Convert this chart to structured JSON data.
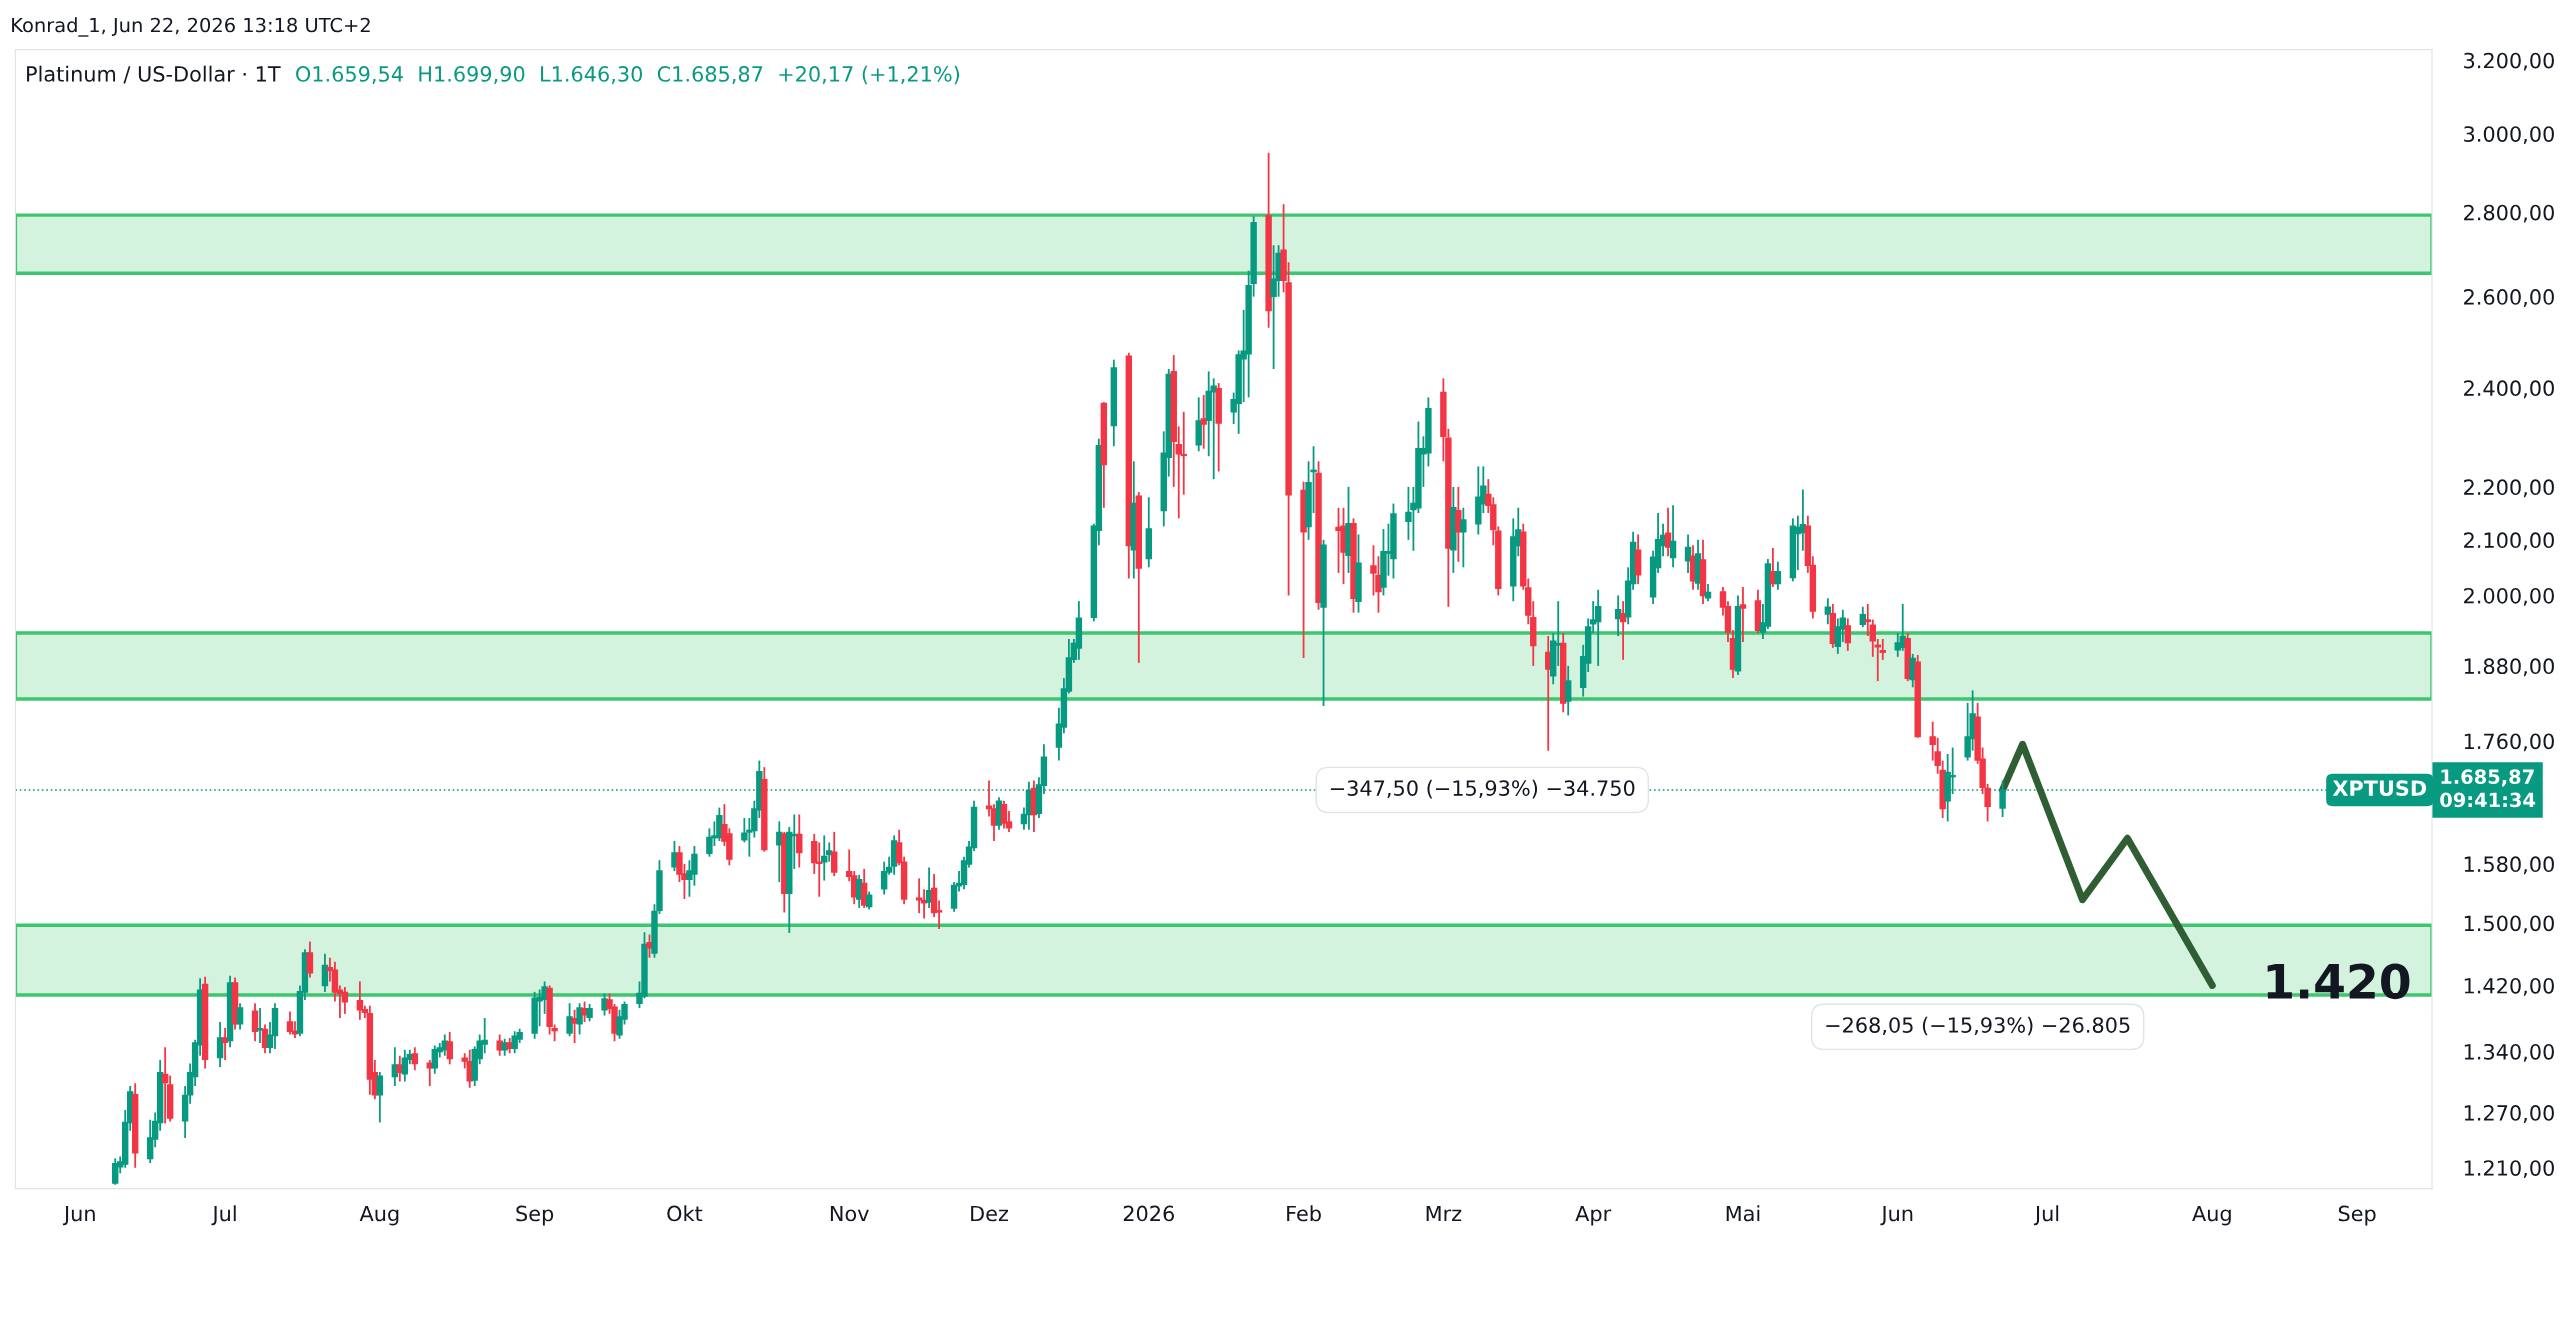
{
  "chart_data": {
    "type": "candlestick",
    "title": "Platinum / US-Dollar · 1T",
    "subtitle": "O1.659,54  H1.699,90  L1.646,30  C1.685,87  +20,17 (+1,21%)",
    "x": [
      "2025-06-09",
      "2025-06-10",
      "2025-06-11",
      "2025-06-12",
      "2025-06-13",
      "2025-06-16",
      "2025-06-17",
      "2025-06-18",
      "2025-06-19",
      "2025-06-20",
      "2025-06-23",
      "2025-06-24",
      "2025-06-25",
      "2025-06-26",
      "2025-06-27",
      "2025-06-30",
      "2025-07-01",
      "2025-07-02",
      "2025-07-03",
      "2025-07-04",
      "2025-07-07",
      "2025-07-08",
      "2025-07-09",
      "2025-07-10",
      "2025-07-11",
      "2025-07-14",
      "2025-07-15",
      "2025-07-16",
      "2025-07-17",
      "2025-07-18",
      "2025-07-21",
      "2025-07-22",
      "2025-07-23",
      "2025-07-24",
      "2025-07-25",
      "2025-07-28",
      "2025-07-29",
      "2025-07-30",
      "2025-07-31",
      "2025-08-01",
      "2025-08-04",
      "2025-08-05",
      "2025-08-06",
      "2025-08-07",
      "2025-08-08",
      "2025-08-11",
      "2025-08-12",
      "2025-08-13",
      "2025-08-14",
      "2025-08-15",
      "2025-08-18",
      "2025-08-19",
      "2025-08-20",
      "2025-08-21",
      "2025-08-22",
      "2025-08-25",
      "2025-08-26",
      "2025-08-27",
      "2025-08-28",
      "2025-08-29",
      "2025-09-01",
      "2025-09-02",
      "2025-09-03",
      "2025-09-04",
      "2025-09-05",
      "2025-09-08",
      "2025-09-09",
      "2025-09-10",
      "2025-09-11",
      "2025-09-12",
      "2025-09-15",
      "2025-09-16",
      "2025-09-17",
      "2025-09-18",
      "2025-09-19",
      "2025-09-22",
      "2025-09-23",
      "2025-09-24",
      "2025-09-25",
      "2025-09-26",
      "2025-09-29",
      "2025-09-30",
      "2025-10-01",
      "2025-10-02",
      "2025-10-03",
      "2025-10-06",
      "2025-10-07",
      "2025-10-08",
      "2025-10-09",
      "2025-10-10",
      "2025-10-13",
      "2025-10-14",
      "2025-10-15",
      "2025-10-16",
      "2025-10-17",
      "2025-10-20",
      "2025-10-21",
      "2025-10-22",
      "2025-10-23",
      "2025-10-24",
      "2025-10-27",
      "2025-10-28",
      "2025-10-29",
      "2025-10-30",
      "2025-10-31",
      "2025-11-03",
      "2025-11-04",
      "2025-11-05",
      "2025-11-06",
      "2025-11-07",
      "2025-11-10",
      "2025-11-11",
      "2025-11-12",
      "2025-11-13",
      "2025-11-14",
      "2025-11-17",
      "2025-11-18",
      "2025-11-19",
      "2025-11-20",
      "2025-11-21",
      "2025-11-24",
      "2025-11-25",
      "2025-11-26",
      "2025-11-27",
      "2025-11-28",
      "2025-12-01",
      "2025-12-02",
      "2025-12-03",
      "2025-12-04",
      "2025-12-05",
      "2025-12-08",
      "2025-12-09",
      "2025-12-10",
      "2025-12-11",
      "2025-12-12",
      "2025-12-15",
      "2025-12-16",
      "2025-12-17",
      "2025-12-18",
      "2025-12-19",
      "2025-12-22",
      "2025-12-23",
      "2025-12-24",
      "2025-12-26",
      "2025-12-29",
      "2025-12-30",
      "2025-12-31",
      "2026-01-02",
      "2026-01-05",
      "2026-01-06",
      "2026-01-07",
      "2026-01-08",
      "2026-01-09",
      "2026-01-12",
      "2026-01-13",
      "2026-01-14",
      "2026-01-15",
      "2026-01-16",
      "2026-01-19",
      "2026-01-20",
      "2026-01-21",
      "2026-01-22",
      "2026-01-23",
      "2026-01-26",
      "2026-01-27",
      "2026-01-28",
      "2026-01-29",
      "2026-01-30",
      "2026-02-02",
      "2026-02-03",
      "2026-02-04",
      "2026-02-05",
      "2026-02-06",
      "2026-02-09",
      "2026-02-10",
      "2026-02-11",
      "2026-02-12",
      "2026-02-13",
      "2026-02-16",
      "2026-02-17",
      "2026-02-18",
      "2026-02-19",
      "2026-02-20",
      "2026-02-23",
      "2026-02-24",
      "2026-02-25",
      "2026-02-26",
      "2026-02-27",
      "2026-03-02",
      "2026-03-03",
      "2026-03-04",
      "2026-03-05",
      "2026-03-06",
      "2026-03-09",
      "2026-03-10",
      "2026-03-11",
      "2026-03-12",
      "2026-03-13",
      "2026-03-16",
      "2026-03-17",
      "2026-03-18",
      "2026-03-19",
      "2026-03-20",
      "2026-03-23",
      "2026-03-24",
      "2026-03-25",
      "2026-03-26",
      "2026-03-27",
      "2026-03-30",
      "2026-03-31",
      "2026-04-01",
      "2026-04-02",
      "2026-04-06",
      "2026-04-07",
      "2026-04-08",
      "2026-04-09",
      "2026-04-10",
      "2026-04-13",
      "2026-04-14",
      "2026-04-15",
      "2026-04-16",
      "2026-04-17",
      "2026-04-20",
      "2026-04-21",
      "2026-04-22",
      "2026-04-23",
      "2026-04-24",
      "2026-04-27",
      "2026-04-28",
      "2026-04-29",
      "2026-04-30",
      "2026-05-01",
      "2026-05-04",
      "2026-05-05",
      "2026-05-06",
      "2026-05-07",
      "2026-05-08",
      "2026-05-11",
      "2026-05-12",
      "2026-05-13",
      "2026-05-14",
      "2026-05-15",
      "2026-05-18",
      "2026-05-19",
      "2026-05-20",
      "2026-05-21",
      "2026-05-22",
      "2026-05-25",
      "2026-05-26",
      "2026-05-27",
      "2026-05-28",
      "2026-05-29",
      "2026-06-01",
      "2026-06-02",
      "2026-06-03",
      "2026-06-04",
      "2026-06-05",
      "2026-06-08",
      "2026-06-09",
      "2026-06-10",
      "2026-06-11",
      "2026-06-12",
      "2026-06-15",
      "2026-06-16",
      "2026-06-17",
      "2026-06-18",
      "2026-06-19",
      "2026-06-22"
    ],
    "ohlc": [
      [
        1194,
        1220,
        1192,
        1214
      ],
      [
        1211,
        1222,
        1204,
        1216
      ],
      [
        1214,
        1273,
        1210,
        1259
      ],
      [
        1259,
        1300,
        1250,
        1293
      ],
      [
        1290,
        1303,
        1210,
        1226
      ],
      [
        1220,
        1262,
        1215,
        1242
      ],
      [
        1241,
        1270,
        1232,
        1260
      ],
      [
        1259,
        1330,
        1250,
        1315
      ],
      [
        1313,
        1345,
        1258,
        1304
      ],
      [
        1301,
        1312,
        1260,
        1264
      ],
      [
        1261,
        1300,
        1242,
        1289
      ],
      [
        1290,
        1326,
        1280,
        1315
      ],
      [
        1311,
        1354,
        1300,
        1350
      ],
      [
        1348,
        1429,
        1335,
        1414
      ],
      [
        1421,
        1431,
        1320,
        1331
      ],
      [
        1333,
        1375,
        1322,
        1356
      ],
      [
        1356,
        1368,
        1330,
        1351
      ],
      [
        1353,
        1432,
        1345,
        1423
      ],
      [
        1423,
        1430,
        1366,
        1373
      ],
      [
        1373,
        1398,
        1366,
        1392
      ],
      [
        1388,
        1398,
        1352,
        1364
      ],
      [
        1366,
        1392,
        1350,
        1367
      ],
      [
        1366,
        1372,
        1338,
        1345
      ],
      [
        1345,
        1375,
        1338,
        1359
      ],
      [
        1359,
        1398,
        1343,
        1391
      ],
      [
        1375,
        1388,
        1360,
        1364
      ],
      [
        1364,
        1376,
        1356,
        1361
      ],
      [
        1362,
        1420,
        1358,
        1412
      ],
      [
        1412,
        1466,
        1402,
        1461
      ],
      [
        1461,
        1476,
        1430,
        1436
      ],
      [
        1420,
        1460,
        1412,
        1445
      ],
      [
        1442,
        1455,
        1425,
        1439
      ],
      [
        1439,
        1450,
        1400,
        1412
      ],
      [
        1414,
        1420,
        1380,
        1410
      ],
      [
        1411,
        1418,
        1385,
        1400
      ],
      [
        1401,
        1425,
        1378,
        1390
      ],
      [
        1390,
        1395,
        1380,
        1387
      ],
      [
        1385,
        1395,
        1290,
        1308
      ],
      [
        1315,
        1330,
        1285,
        1290
      ],
      [
        1290,
        1316,
        1259,
        1311
      ],
      [
        1311,
        1345,
        1300,
        1324
      ],
      [
        1324,
        1335,
        1305,
        1316
      ],
      [
        1314,
        1342,
        1305,
        1332
      ],
      [
        1331,
        1342,
        1325,
        1336
      ],
      [
        1337,
        1345,
        1318,
        1326
      ],
      [
        1326,
        1330,
        1300,
        1321
      ],
      [
        1321,
        1347,
        1314,
        1342
      ],
      [
        1340,
        1350,
        1333,
        1344
      ],
      [
        1342,
        1360,
        1335,
        1352
      ],
      [
        1351,
        1363,
        1325,
        1332
      ],
      [
        1332,
        1338,
        1320,
        1329
      ],
      [
        1328,
        1342,
        1298,
        1306
      ],
      [
        1307,
        1346,
        1300,
        1342
      ],
      [
        1332,
        1360,
        1325,
        1352
      ],
      [
        1349,
        1380,
        1338,
        1353
      ],
      [
        1352,
        1360,
        1335,
        1342
      ],
      [
        1342,
        1355,
        1335,
        1350
      ],
      [
        1350,
        1356,
        1338,
        1344
      ],
      [
        1344,
        1364,
        1338,
        1358
      ],
      [
        1355,
        1367,
        1350,
        1362
      ],
      [
        1362,
        1412,
        1355,
        1404
      ],
      [
        1401,
        1415,
        1370,
        1405
      ],
      [
        1403,
        1425,
        1385,
        1418
      ],
      [
        1416,
        1420,
        1360,
        1370
      ],
      [
        1367,
        1372,
        1352,
        1365
      ],
      [
        1362,
        1398,
        1358,
        1381
      ],
      [
        1379,
        1390,
        1350,
        1374
      ],
      [
        1373,
        1398,
        1360,
        1392
      ],
      [
        1391,
        1400,
        1375,
        1384
      ],
      [
        1381,
        1397,
        1376,
        1391
      ],
      [
        1390,
        1410,
        1383,
        1403
      ],
      [
        1402,
        1410,
        1385,
        1392
      ],
      [
        1393,
        1397,
        1352,
        1362
      ],
      [
        1360,
        1390,
        1355,
        1381
      ],
      [
        1379,
        1400,
        1372,
        1396
      ],
      [
        1398,
        1425,
        1392,
        1410
      ],
      [
        1407,
        1488,
        1404,
        1472
      ],
      [
        1474,
        1485,
        1455,
        1468
      ],
      [
        1461,
        1525,
        1455,
        1515
      ],
      [
        1517,
        1585,
        1512,
        1570
      ],
      [
        1576,
        1612,
        1570,
        1595
      ],
      [
        1595,
        1605,
        1555,
        1566
      ],
      [
        1566,
        1580,
        1532,
        1559
      ],
      [
        1559,
        1585,
        1535,
        1570
      ],
      [
        1566,
        1605,
        1550,
        1593
      ],
      [
        1595,
        1630,
        1590,
        1617
      ],
      [
        1617,
        1640,
        1605,
        1619
      ],
      [
        1617,
        1660,
        1612,
        1648
      ],
      [
        1635,
        1665,
        1605,
        1612
      ],
      [
        1622,
        1630,
        1578,
        1587
      ],
      [
        1614,
        1645,
        1610,
        1623
      ],
      [
        1625,
        1645,
        1590,
        1627
      ],
      [
        1627,
        1670,
        1617,
        1658
      ],
      [
        1657,
        1730,
        1645,
        1713
      ],
      [
        1701,
        1720,
        1597,
        1600
      ],
      [
        1607,
        1640,
        1555,
        1624
      ],
      [
        1622,
        1625,
        1514,
        1540
      ],
      [
        1540,
        1632,
        1487,
        1624
      ],
      [
        1620,
        1650,
        1573,
        1621
      ],
      [
        1621,
        1650,
        1575,
        1596
      ],
      [
        1611,
        1622,
        1566,
        1582
      ],
      [
        1582,
        1610,
        1535,
        1581
      ],
      [
        1583,
        1620,
        1557,
        1590
      ],
      [
        1593,
        1610,
        1583,
        1598
      ],
      [
        1596,
        1625,
        1563,
        1569
      ],
      [
        1569,
        1600,
        1556,
        1563
      ],
      [
        1563,
        1570,
        1525,
        1535
      ],
      [
        1532,
        1565,
        1520,
        1558
      ],
      [
        1553,
        1573,
        1520,
        1524
      ],
      [
        1522,
        1542,
        1518,
        1537
      ],
      [
        1546,
        1583,
        1538,
        1569
      ],
      [
        1569,
        1590,
        1565,
        1575
      ],
      [
        1577,
        1620,
        1565,
        1612
      ],
      [
        1609,
        1628,
        1578,
        1582
      ],
      [
        1582,
        1590,
        1525,
        1532
      ],
      [
        1533,
        1560,
        1513,
        1531
      ],
      [
        1530,
        1545,
        1506,
        1527
      ],
      [
        1528,
        1575,
        1520,
        1543
      ],
      [
        1546,
        1566,
        1508,
        1514
      ],
      [
        1516,
        1530,
        1492,
        1515
      ],
      [
        1520,
        1555,
        1515,
        1550
      ],
      [
        1550,
        1570,
        1542,
        1553
      ],
      [
        1552,
        1590,
        1545,
        1584
      ],
      [
        1580,
        1612,
        1575,
        1603
      ],
      [
        1603,
        1670,
        1598,
        1660
      ],
      [
        1662,
        1700,
        1647,
        1659
      ],
      [
        1658,
        1665,
        1612,
        1635
      ],
      [
        1635,
        1675,
        1628,
        1669
      ],
      [
        1664,
        1670,
        1630,
        1638
      ],
      [
        1639,
        1655,
        1625,
        1631
      ],
      [
        1637,
        1660,
        1628,
        1650
      ],
      [
        1650,
        1698,
        1628,
        1685
      ],
      [
        1688,
        1700,
        1625,
        1650
      ],
      [
        1652,
        1705,
        1645,
        1693
      ],
      [
        1693,
        1755,
        1680,
        1735
      ],
      [
        1751,
        1812,
        1730,
        1786
      ],
      [
        1782,
        1860,
        1772,
        1842
      ],
      [
        1839,
        1925,
        1835,
        1893
      ],
      [
        1891,
        1925,
        1885,
        1917
      ],
      [
        1910,
        1990,
        1890,
        1960
      ],
      [
        1962,
        2130,
        1955,
        2125
      ],
      [
        2118,
        2295,
        2090,
        2281
      ],
      [
        2367,
        2370,
        2160,
        2244
      ],
      [
        2322,
        2460,
        2280,
        2442
      ],
      [
        2467,
        2475,
        2030,
        2090
      ],
      [
        2082,
        2250,
        2030,
        2168
      ],
      [
        2182,
        2190,
        1885,
        2049
      ],
      [
        2066,
        2180,
        2050,
        2120
      ],
      [
        2155,
        2310,
        2125,
        2266
      ],
      [
        2258,
        2440,
        2220,
        2428
      ],
      [
        2434,
        2470,
        2200,
        2290
      ],
      [
        2283,
        2320,
        2140,
        2265
      ],
      [
        2263,
        2350,
        2185,
        2262
      ],
      [
        2283,
        2380,
        2270,
        2331
      ],
      [
        2335,
        2385,
        2275,
        2325
      ],
      [
        2333,
        2435,
        2260,
        2392
      ],
      [
        2392,
        2420,
        2215,
        2403
      ],
      [
        2398,
        2410,
        2230,
        2327
      ],
      [
        2350,
        2390,
        2325,
        2375
      ],
      [
        2368,
        2480,
        2305,
        2470
      ],
      [
        2462,
        2570,
        2370,
        2478
      ],
      [
        2473,
        2660,
        2380,
        2625
      ],
      [
        2631,
        2790,
        2600,
        2774
      ],
      [
        2791,
        2950,
        2530,
        2569
      ],
      [
        2601,
        2720,
        2440,
        2640
      ],
      [
        2638,
        2720,
        2600,
        2700
      ],
      [
        2708,
        2820,
        2610,
        2638
      ],
      [
        2631,
        2680,
        2000,
        2185
      ],
      [
        2193,
        2210,
        1893,
        2115
      ],
      [
        2125,
        2250,
        2100,
        2208
      ],
      [
        2230,
        2280,
        2150,
        2232
      ],
      [
        2226,
        2250,
        1975,
        1988
      ],
      [
        1980,
        2100,
        1815,
        2090
      ],
      [
        2123,
        2160,
        2040,
        2118
      ],
      [
        2125,
        2160,
        2020,
        2078
      ],
      [
        2072,
        2200,
        2040,
        2130
      ],
      [
        2130,
        2140,
        1970,
        1995
      ],
      [
        1990,
        2110,
        1970,
        2057
      ],
      [
        2052,
        2090,
        2000,
        2040
      ],
      [
        2035,
        2070,
        1970,
        2007
      ],
      [
        2015,
        2120,
        2000,
        2078
      ],
      [
        2076,
        2130,
        2035,
        2078
      ],
      [
        2066,
        2168,
        2030,
        2148
      ],
      [
        2135,
        2200,
        2100,
        2151
      ],
      [
        2157,
        2200,
        2080,
        2168
      ],
      [
        2160,
        2330,
        2150,
        2275
      ],
      [
        2265,
        2300,
        2200,
        2275
      ],
      [
        2267,
        2380,
        2240,
        2356
      ],
      [
        2390,
        2420,
        2250,
        2300
      ],
      [
        2296,
        2315,
        1980,
        2085
      ],
      [
        2082,
        2200,
        2040,
        2160
      ],
      [
        2154,
        2200,
        2060,
        2115
      ],
      [
        2115,
        2160,
        2050,
        2137
      ],
      [
        2130,
        2240,
        2110,
        2180
      ],
      [
        2168,
        2240,
        2150,
        2201
      ],
      [
        2185,
        2215,
        2150,
        2165
      ],
      [
        2165,
        2180,
        2090,
        2120
      ],
      [
        2116,
        2125,
        2000,
        2013
      ],
      [
        2017,
        2140,
        1990,
        2105
      ],
      [
        2090,
        2160,
        2070,
        2118
      ],
      [
        2114,
        2130,
        2010,
        2017
      ],
      [
        2013,
        2030,
        1950,
        1966
      ],
      [
        1961,
        1990,
        1880,
        1914
      ],
      [
        1902,
        1930,
        1745,
        1875
      ],
      [
        1864,
        1935,
        1850,
        1921
      ],
      [
        1915,
        1990,
        1880,
        1917
      ],
      [
        1917,
        1935,
        1805,
        1820
      ],
      [
        1823,
        1880,
        1800,
        1855
      ],
      [
        1845,
        1915,
        1830,
        1895
      ],
      [
        1885,
        1960,
        1870,
        1945
      ],
      [
        1951,
        1990,
        1935,
        1957
      ],
      [
        1955,
        2010,
        1880,
        1980
      ],
      [
        1960,
        2000,
        1930,
        1975
      ],
      [
        1968,
        1990,
        1890,
        1955
      ],
      [
        1963,
        2050,
        1950,
        2025
      ],
      [
        2021,
        2115,
        2010,
        2095
      ],
      [
        2081,
        2110,
        2020,
        2037
      ],
      [
        1998,
        2080,
        1985,
        2068
      ],
      [
        2050,
        2150,
        2040,
        2100
      ],
      [
        2090,
        2130,
        2070,
        2108
      ],
      [
        2112,
        2160,
        2070,
        2087
      ],
      [
        2068,
        2165,
        2050,
        2097
      ],
      [
        2062,
        2110,
        2040,
        2086
      ],
      [
        2070,
        2090,
        2010,
        2026
      ],
      [
        2022,
        2100,
        2010,
        2074
      ],
      [
        2063,
        2100,
        1985,
        2000
      ],
      [
        1996,
        2020,
        1990,
        2005
      ],
      [
        2006,
        2015,
        1965,
        1980
      ],
      [
        1980,
        1990,
        1920,
        1937
      ],
      [
        1925,
        1940,
        1860,
        1875
      ],
      [
        1872,
        2000,
        1865,
        1980
      ],
      [
        1983,
        2015,
        1920,
        1978
      ],
      [
        1990,
        2010,
        1935,
        1940
      ],
      [
        1937,
        1985,
        1925,
        1952
      ],
      [
        1947,
        2065,
        1942,
        2056
      ],
      [
        2042,
        2085,
        2015,
        2021
      ],
      [
        2021,
        2060,
        2010,
        2042
      ],
      [
        2032,
        2140,
        2025,
        2125
      ],
      [
        2112,
        2145,
        2045,
        2123
      ],
      [
        2114,
        2195,
        2080,
        2128
      ],
      [
        2125,
        2145,
        2040,
        2054
      ],
      [
        2053,
        2070,
        1960,
        1973
      ],
      [
        1968,
        1995,
        1950,
        1979
      ],
      [
        1968,
        1985,
        1910,
        1918
      ],
      [
        1913,
        1960,
        1900,
        1945
      ],
      [
        1942,
        1975,
        1920,
        1960
      ],
      [
        1947,
        1960,
        1905,
        1919
      ],
      [
        1950,
        1980,
        1945,
        1966
      ],
      [
        1957,
        1985,
        1930,
        1955
      ],
      [
        1948,
        1958,
        1895,
        1922
      ],
      [
        1914,
        1925,
        1855,
        1912
      ],
      [
        1905,
        1925,
        1890,
        1903
      ],
      [
        1907,
        1935,
        1895,
        1918
      ],
      [
        1911,
        1985,
        1905,
        1929
      ],
      [
        1925,
        1935,
        1855,
        1860
      ],
      [
        1858,
        1900,
        1845,
        1892
      ],
      [
        1886,
        1898,
        1765,
        1767
      ],
      [
        1766,
        1790,
        1730,
        1755
      ],
      [
        1743,
        1765,
        1710,
        1723
      ],
      [
        1715,
        1730,
        1645,
        1659
      ],
      [
        1670,
        1740,
        1640,
        1712
      ],
      [
        1706,
        1750,
        1680,
        1707
      ],
      [
        1736,
        1820,
        1730,
        1766
      ],
      [
        1764,
        1840,
        1745,
        1802
      ],
      [
        1797,
        1820,
        1725,
        1731
      ],
      [
        1732,
        1750,
        1680,
        1690
      ],
      [
        1688,
        1695,
        1640,
        1662
      ],
      [
        1659.54,
        1699.9,
        1646.3,
        1685.87
      ]
    ],
    "series": [
      {
        "type": "line",
        "color": "#2f5e35",
        "x": [
          "2026-06-22",
          "2026-06-26",
          "2026-07-08",
          "2026-07-17",
          "2026-08-03"
        ],
        "values": [
          1685.87,
          1755,
          1531,
          1616,
          1420
        ]
      }
    ],
    "log": true,
    "xlim": [
      "2025-05-20",
      "2026-09-16"
    ],
    "xticks": [
      {
        "value": "2025-06-02",
        "label": "Jun"
      },
      {
        "value": "2025-07-01",
        "label": "Jul"
      },
      {
        "value": "2025-08-01",
        "label": "Aug"
      },
      {
        "value": "2025-09-01",
        "label": "Sep"
      },
      {
        "value": "2025-10-01",
        "label": "Okt"
      },
      {
        "value": "2025-11-03",
        "label": "Nov"
      },
      {
        "value": "2025-12-01",
        "label": "Dez"
      },
      {
        "value": "2026-01-02",
        "label": "2026"
      },
      {
        "value": "2026-02-02",
        "label": "Feb"
      },
      {
        "value": "2026-03-02",
        "label": "Mrz"
      },
      {
        "value": "2026-04-01",
        "label": "Apr"
      },
      {
        "value": "2026-05-01",
        "label": "Mai"
      },
      {
        "value": "2026-06-01",
        "label": "Jun"
      },
      {
        "value": "2026-07-01",
        "label": "Jul"
      },
      {
        "value": "2026-08-03",
        "label": "Aug"
      },
      {
        "value": "2026-09-01",
        "label": "Sep"
      }
    ],
    "ylim": [
      1188,
      3230
    ],
    "yticks": [
      {
        "value": 1210,
        "label": "1.210,00"
      },
      {
        "value": 1270,
        "label": "1.270,00"
      },
      {
        "value": 1340,
        "label": "1.340,00"
      },
      {
        "value": 1420,
        "label": "1.420,00"
      },
      {
        "value": 1500,
        "label": "1.500,00"
      },
      {
        "value": 1580,
        "label": "1.580,00"
      },
      {
        "value": 1760,
        "label": "1.760,00"
      },
      {
        "value": 1880,
        "label": "1.880,00"
      },
      {
        "value": 2000,
        "label": "2.000,00"
      },
      {
        "value": 2100,
        "label": "2.100,00"
      },
      {
        "value": 2200,
        "label": "2.200,00"
      },
      {
        "value": 2400,
        "label": "2.400,00"
      },
      {
        "value": 2600,
        "label": "2.600,00"
      },
      {
        "value": 2800,
        "label": "2.800,00"
      },
      {
        "value": 3000,
        "label": "3.000,00"
      },
      {
        "value": 3200,
        "label": "3.200,00"
      }
    ],
    "bands": [
      {
        "axis": "y",
        "from": 2654,
        "to": 2793,
        "color": "#3cc76e"
      },
      {
        "axis": "y",
        "from": 1826,
        "to": 1935,
        "color": "#3cc76e"
      },
      {
        "axis": "y",
        "from": 1408,
        "to": 1497,
        "color": "#3cc76e"
      }
    ],
    "ref_lines": [
      {
        "axis": "y",
        "value": 1685.87,
        "label": "XPTUSD",
        "color": "#089981",
        "line_style": "dotted"
      }
    ],
    "annotations": [
      "Konrad_1, Jun 22, 2026 13:18 UTC+2",
      "1.685,87\n09:41:34",
      "−347,50 (−15,93%) −34.750",
      "−268,05 (−15,93%) −26.805",
      {
        "text": "1.420",
        "x": "2026-08-03",
        "y": 1420
      }
    ]
  }
}
